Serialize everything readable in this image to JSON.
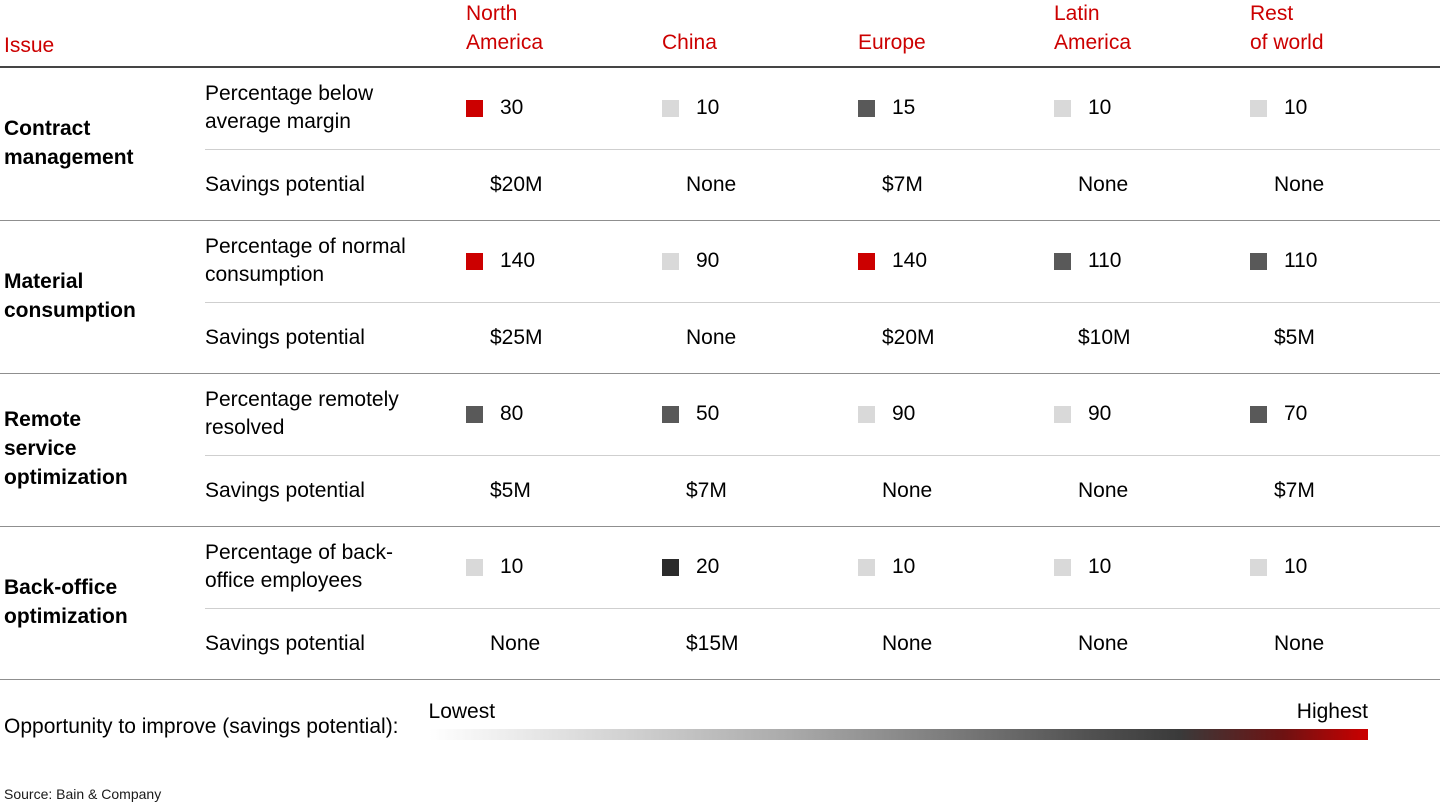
{
  "header": {
    "issue_label": "Issue",
    "regions": [
      "North\nAmerica",
      "China",
      "Europe",
      "Latin\nAmerica",
      "Rest\nof world"
    ]
  },
  "chart_data": {
    "type": "table",
    "columns": [
      "North America",
      "China",
      "Europe",
      "Latin America",
      "Rest of world"
    ],
    "groups": [
      {
        "issue": "Contract\nmanagement",
        "metric": {
          "label": "Percentage below\naverage margin",
          "values": [
            30,
            10,
            15,
            10,
            10
          ],
          "levels": [
            "highest",
            "lowest",
            "medium",
            "lowest",
            "lowest"
          ]
        },
        "savings": {
          "label": "Savings potential",
          "values": [
            "$20M",
            "None",
            "$7M",
            "None",
            "None"
          ]
        }
      },
      {
        "issue": "Material\nconsumption",
        "metric": {
          "label": "Percentage of normal\nconsumption",
          "values": [
            140,
            90,
            140,
            110,
            110
          ],
          "levels": [
            "highest",
            "lowest",
            "highest",
            "medium",
            "medium"
          ]
        },
        "savings": {
          "label": "Savings potential",
          "values": [
            "$25M",
            "None",
            "$20M",
            "$10M",
            "$5M"
          ]
        }
      },
      {
        "issue": "Remote\nservice\noptimization",
        "metric": {
          "label": "Percentage remotely\nresolved",
          "values": [
            80,
            50,
            90,
            90,
            70
          ],
          "levels": [
            "medium",
            "medium",
            "lowest",
            "lowest",
            "medium"
          ]
        },
        "savings": {
          "label": "Savings potential",
          "values": [
            "$5M",
            "$7M",
            "None",
            "None",
            "$7M"
          ]
        }
      },
      {
        "issue": "Back-office\noptimization",
        "metric": {
          "label": "Percentage of back-\noffice employees",
          "values": [
            10,
            20,
            10,
            10,
            10
          ],
          "levels": [
            "lowest",
            "high",
            "lowest",
            "lowest",
            "lowest"
          ]
        },
        "savings": {
          "label": "Savings potential",
          "values": [
            "None",
            "$15M",
            "None",
            "None",
            "None"
          ]
        }
      }
    ],
    "legend": {
      "label": "Opportunity to improve (savings potential):",
      "low": "Lowest",
      "high": "Highest"
    },
    "color_scale_note": "lowest = light gray, highest = red"
  },
  "colors": {
    "lowest": "#d9d9d9",
    "medium": "#595959",
    "high": "#2b2b2b",
    "highest": "#cc0000",
    "accent": "#cc0000"
  },
  "source": "Source: Bain & Company"
}
